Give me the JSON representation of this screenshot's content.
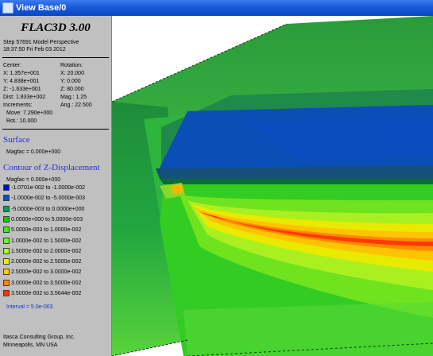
{
  "window": {
    "title": "View Base/0"
  },
  "legend": {
    "app_title": "FLAC3D 3.00",
    "step_line": "Step 57691 Model Perspective",
    "timestamp": "18:37:50 Fri Feb 03 2012",
    "center_label": "Center:",
    "rotation_label": "Rotation:",
    "center_x": "X: 1.357e+001",
    "center_y": "Y: 4.838e+001",
    "center_z": "Z: -1.633e+001",
    "rot_x": "X:  20.000",
    "rot_y": "Y:    0.000",
    "rot_z": "Z:  80.000",
    "dist": "Dist: 1.833e+002",
    "mag": "Mag.:    1.25",
    "increments": "Increments:",
    "ang": "Ang.:  22.500",
    "move": "Move: 7.290e+000",
    "rot": "Rot.:  10.000",
    "surface_title": "Surface",
    "surface_magfac": "Magfac = 0.000e+000",
    "contour_title": "Contour of Z-Displacement",
    "contour_magfac": "Magfac = 0.000e+000",
    "contour_ranges": [
      {
        "label": "-1.0701e-002 to -1.0000e-002",
        "color": "#0000ff"
      },
      {
        "label": "-1.0000e-002 to -5.0000e-003",
        "color": "#0050c8"
      },
      {
        "label": "-5.0000e-003 to  0.0000e+000",
        "color": "#00a050"
      },
      {
        "label": " 0.0000e+000 to  5.0000e-003",
        "color": "#00cc00"
      },
      {
        "label": " 5.0000e-003 to  1.0000e-002",
        "color": "#33ee11"
      },
      {
        "label": " 1.0000e-002 to  1.5000e-002",
        "color": "#66ff22"
      },
      {
        "label": " 1.5000e-002 to  2.0000e-002",
        "color": "#aaff22"
      },
      {
        "label": " 2.0000e-002 to  2.5000e-002",
        "color": "#e8f000"
      },
      {
        "label": " 2.5000e-002 to  3.0000e-002",
        "color": "#ffcc00"
      },
      {
        "label": " 3.0000e-002 to  3.5000e-002",
        "color": "#ff8800"
      },
      {
        "label": " 3.5000e-002 to  3.5644e-002",
        "color": "#ff3300"
      }
    ],
    "interval": "Interval =  5.0e-003",
    "company": "Itasca Consulting Group, Inc.",
    "location": "Minneapolis, MN  USA"
  }
}
